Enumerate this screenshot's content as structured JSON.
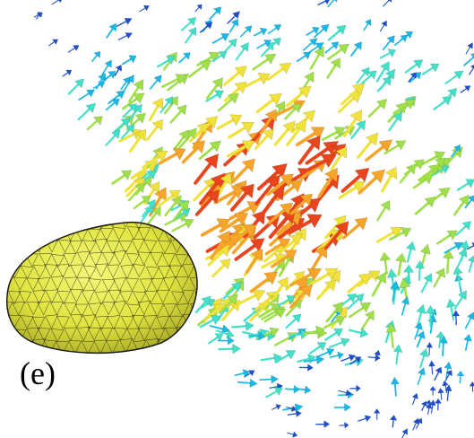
{
  "figure": {
    "panel_label": "(e)",
    "subject": "ellipsoid-mesh-with-vector-field",
    "colors": {
      "background": "#ffffff",
      "mesh_fill": "#e3e84a",
      "mesh_shadow": "#8c8c22",
      "mesh_lines": "#1b1b10",
      "arrow_colormap": [
        "#1f4fd1",
        "#19b8e6",
        "#42e0c9",
        "#9fe04a",
        "#f0e23a",
        "#f6a42a",
        "#e8441e"
      ]
    }
  }
}
